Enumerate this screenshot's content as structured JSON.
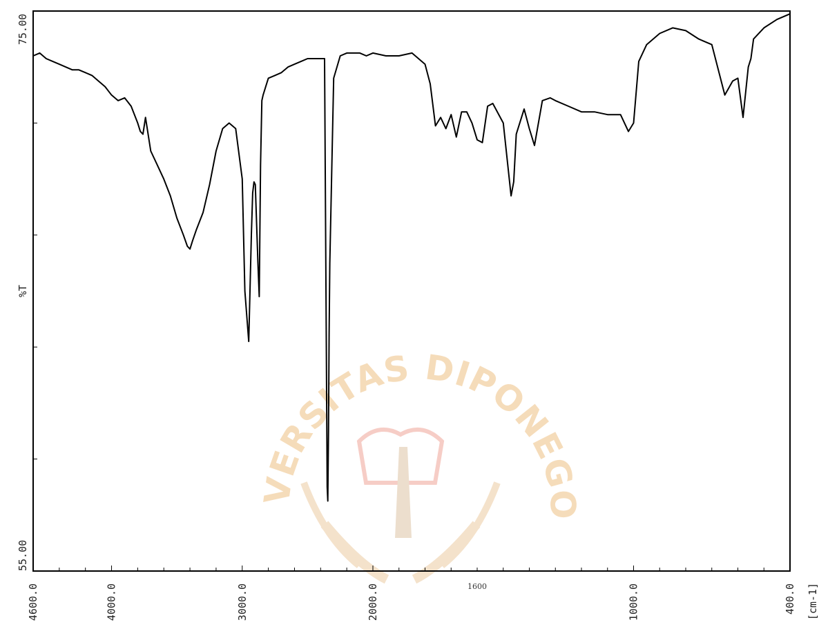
{
  "chart_data": {
    "type": "line",
    "title": "",
    "ylabel": "%T",
    "xunit": "[cm-1]",
    "xlim": [
      4600,
      400
    ],
    "ylim": [
      55,
      75
    ],
    "x_ticks": [
      {
        "value": 4600,
        "label": "4600.0"
      },
      {
        "value": 4000,
        "label": "4000.0"
      },
      {
        "value": 3000,
        "label": "3000.0"
      },
      {
        "value": 2000,
        "label": "2000.0"
      },
      {
        "value": 1000,
        "label": "1000.0"
      },
      {
        "value": 400,
        "label": "400.0"
      }
    ],
    "y_ticks": [
      {
        "value": 75,
        "label": "75.00"
      },
      {
        "value": 55,
        "label": "55.00"
      }
    ],
    "annotations": [
      {
        "text": "1600",
        "x": 1600
      }
    ],
    "grid": false,
    "series": [
      {
        "x": [
          4600,
          4550,
          4500,
          4450,
          4400,
          4350,
          4300,
          4250,
          4200,
          4150,
          4100,
          4050,
          4000,
          3950,
          3900,
          3850,
          3800,
          3780,
          3760,
          3740,
          3700,
          3650,
          3600,
          3550,
          3500,
          3450,
          3420,
          3400,
          3380,
          3350,
          3300,
          3250,
          3200,
          3150,
          3100,
          3050,
          3000,
          2980,
          2950,
          2930,
          2920,
          2910,
          2900,
          2880,
          2870,
          2860,
          2850,
          2840,
          2820,
          2800,
          2750,
          2700,
          2650,
          2600,
          2550,
          2500,
          2400,
          2370,
          2350,
          2345,
          2340,
          2335,
          2330,
          2300,
          2250,
          2200,
          2150,
          2100,
          2050,
          2000,
          1950,
          1900,
          1850,
          1800,
          1780,
          1760,
          1740,
          1720,
          1700,
          1680,
          1660,
          1640,
          1620,
          1600,
          1580,
          1560,
          1540,
          1500,
          1470,
          1460,
          1450,
          1420,
          1400,
          1380,
          1350,
          1320,
          1300,
          1250,
          1200,
          1150,
          1100,
          1050,
          1020,
          1000,
          980,
          950,
          900,
          850,
          800,
          750,
          700,
          650,
          620,
          600,
          580,
          560,
          550,
          540,
          500,
          450,
          400
        ],
        "y": [
          73.4,
          73.5,
          73.3,
          73.2,
          73.1,
          73.0,
          72.9,
          72.9,
          72.8,
          72.7,
          72.5,
          72.3,
          72.0,
          71.8,
          71.9,
          71.6,
          71.0,
          70.7,
          70.6,
          71.2,
          70.0,
          69.5,
          69.0,
          68.4,
          67.6,
          67.0,
          66.6,
          66.5,
          66.8,
          67.2,
          67.8,
          68.8,
          70.0,
          70.8,
          71.0,
          70.8,
          69.0,
          65.0,
          63.2,
          67.0,
          68.5,
          68.9,
          68.8,
          66.0,
          64.8,
          69.5,
          71.8,
          72.0,
          72.3,
          72.6,
          72.7,
          72.8,
          73.0,
          73.1,
          73.2,
          73.3,
          73.3,
          73.3,
          58.0,
          57.5,
          60.0,
          63.5,
          66.0,
          72.6,
          73.4,
          73.5,
          73.5,
          73.5,
          73.4,
          73.5,
          73.4,
          73.4,
          73.5,
          73.1,
          72.4,
          70.9,
          71.2,
          70.8,
          71.3,
          70.5,
          71.4,
          71.4,
          71.0,
          70.4,
          70.3,
          71.6,
          71.7,
          71.0,
          68.4,
          68.9,
          70.6,
          71.5,
          70.8,
          70.2,
          71.8,
          71.9,
          71.8,
          71.6,
          71.4,
          71.4,
          71.3,
          71.3,
          70.7,
          71.0,
          73.2,
          73.8,
          74.2,
          74.4,
          74.3,
          74.0,
          73.8,
          72.0,
          72.5,
          72.6,
          71.2,
          73.0,
          73.3,
          74.0,
          74.4,
          74.7,
          74.9
        ]
      }
    ]
  },
  "watermark": {
    "text": "UNIVERSITAS DIPONEGORO",
    "color": "#f5d9b3"
  }
}
